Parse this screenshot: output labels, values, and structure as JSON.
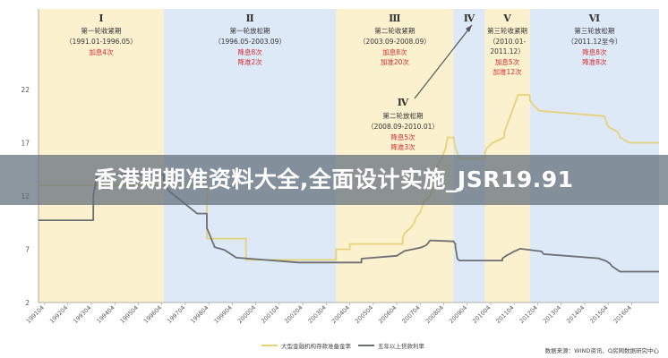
{
  "page_title": "香港期期准资料大全,全面设计实施_JSR19.91",
  "colors": {
    "tighten": "#fbf1cf",
    "ease": "#dde9f6",
    "rrr_line": "#e7d27a",
    "rate_line": "#6b6f73",
    "text": "#333333",
    "red": "#d42a2a"
  },
  "chart_data": {
    "type": "line",
    "ylim": [
      2,
      22
    ],
    "yticks": [
      2,
      7,
      12,
      17,
      22
    ],
    "xlim": [
      "1991-01",
      "2017-06"
    ],
    "grid": false,
    "legend_position": "bottom",
    "x_tick_labels": [
      "199104",
      "199204",
      "199304",
      "199404",
      "199504",
      "199604",
      "199704",
      "199804",
      "199904",
      "200004",
      "200104",
      "200204",
      "200304",
      "200404",
      "200504",
      "200604",
      "200704",
      "200804",
      "200904",
      "201004",
      "201104",
      "201204",
      "201304",
      "201404",
      "201504",
      "201604"
    ],
    "periods": [
      {
        "id": "I",
        "kind": "tighten",
        "start": "1991-01",
        "end": "1996-05",
        "title": "第一轮收紧期",
        "range": "（1991.01-1996.05）",
        "ops": [
          "加息4次"
        ]
      },
      {
        "id": "II",
        "kind": "ease",
        "start": "1996-05",
        "end": "2003-09",
        "title": "第一轮放松期",
        "range": "（1996.05-2003.09）",
        "ops": [
          "降息8次",
          "降准2次"
        ]
      },
      {
        "id": "III",
        "kind": "tighten",
        "start": "2003-09",
        "end": "2008-09",
        "title": "第二轮收紧期",
        "range": "（2003.09-2008.09）",
        "ops": [
          "加息8次",
          "加准20次"
        ]
      },
      {
        "id": "IV",
        "kind": "ease",
        "start": "2008-09",
        "end": "2010-01",
        "title": "第二轮放松期",
        "range": "（2008.09-2010.01）",
        "ops": [
          "降息5次",
          "降准3次"
        ]
      },
      {
        "id": "V",
        "kind": "tighten",
        "start": "2010-01",
        "end": "2011-12",
        "title": "第三轮收紧期",
        "range": "（2010.01-2011.12）",
        "ops": [
          "加息5次",
          "加准12次"
        ]
      },
      {
        "id": "VI",
        "kind": "ease",
        "start": "2011-12",
        "end": "2017-06",
        "title": "第三轮放松期",
        "range": "（2011.12至今）",
        "ops": [
          "降息8次",
          "降准8次"
        ]
      }
    ],
    "series": [
      {
        "name": "大型金融机构存款准备金率",
        "color": "#e7d27a",
        "points": [
          [
            "1991-01",
            13
          ],
          [
            "1998-03",
            13
          ],
          [
            "1998-03",
            8
          ],
          [
            "1999-11",
            8
          ],
          [
            "1999-11",
            6
          ],
          [
            "2003-09",
            6
          ],
          [
            "2003-09",
            7
          ],
          [
            "2004-04",
            7
          ],
          [
            "2004-04",
            7.5
          ],
          [
            "2006-07",
            7.5
          ],
          [
            "2006-07",
            8
          ],
          [
            "2006-08",
            8.5
          ],
          [
            "2006-11",
            9
          ],
          [
            "2007-01",
            9.5
          ],
          [
            "2007-02",
            10
          ],
          [
            "2007-04",
            10.5
          ],
          [
            "2007-05",
            11
          ],
          [
            "2007-06",
            11.5
          ],
          [
            "2007-09",
            12
          ],
          [
            "2007-10",
            12.5
          ],
          [
            "2007-12",
            14.5
          ],
          [
            "2008-01",
            15
          ],
          [
            "2008-03",
            15.5
          ],
          [
            "2008-04",
            16
          ],
          [
            "2008-05",
            16.5
          ],
          [
            "2008-06",
            17.5
          ],
          [
            "2008-09",
            17.5
          ],
          [
            "2008-10",
            16.5
          ],
          [
            "2008-12",
            15.5
          ],
          [
            "2010-01",
            15.5
          ],
          [
            "2010-01",
            16
          ],
          [
            "2010-02",
            16.5
          ],
          [
            "2010-05",
            17
          ],
          [
            "2010-11",
            17.5
          ],
          [
            "2010-11",
            18
          ],
          [
            "2010-12",
            18.5
          ],
          [
            "2011-01",
            19
          ],
          [
            "2011-02",
            19.5
          ],
          [
            "2011-03",
            20
          ],
          [
            "2011-04",
            20.5
          ],
          [
            "2011-05",
            21
          ],
          [
            "2011-06",
            21.5
          ],
          [
            "2011-12",
            21.5
          ],
          [
            "2011-12",
            21
          ],
          [
            "2012-02",
            20.5
          ],
          [
            "2012-05",
            20
          ],
          [
            "2015-02",
            19.5
          ],
          [
            "2015-04",
            18.5
          ],
          [
            "2015-09",
            18
          ],
          [
            "2015-10",
            17.5
          ],
          [
            "2016-03",
            17
          ],
          [
            "2017-06",
            17
          ]
        ]
      },
      {
        "name": "五年以上贷款利率",
        "color": "#6b6f73",
        "points": [
          [
            "1991-01",
            9.72
          ],
          [
            "1991-04",
            9.72
          ],
          [
            "1993-05",
            9.72
          ],
          [
            "1993-05",
            12.06
          ],
          [
            "1993-07",
            14.04
          ],
          [
            "1996-05",
            14.04
          ],
          [
            "1996-05",
            13.14
          ],
          [
            "1996-08",
            12.42
          ],
          [
            "1997-10",
            10.35
          ],
          [
            "1998-03",
            10.35
          ],
          [
            "1998-03",
            9.0
          ],
          [
            "1998-07",
            7.2
          ],
          [
            "1998-12",
            6.93
          ],
          [
            "1999-06",
            6.21
          ],
          [
            "2002-02",
            5.76
          ],
          [
            "2004-10",
            5.76
          ],
          [
            "2004-10",
            6.12
          ],
          [
            "2006-04",
            6.39
          ],
          [
            "2006-08",
            6.84
          ],
          [
            "2007-03",
            7.11
          ],
          [
            "2007-05",
            7.2
          ],
          [
            "2007-07",
            7.38
          ],
          [
            "2007-08",
            7.56
          ],
          [
            "2007-09",
            7.83
          ],
          [
            "2008-09",
            7.74
          ],
          [
            "2008-10",
            7.47
          ],
          [
            "2008-10",
            7.2
          ],
          [
            "2008-11",
            6.12
          ],
          [
            "2008-12",
            5.94
          ],
          [
            "2010-10",
            5.94
          ],
          [
            "2010-10",
            6.14
          ],
          [
            "2010-12",
            6.4
          ],
          [
            "2011-02",
            6.6
          ],
          [
            "2011-04",
            6.8
          ],
          [
            "2011-07",
            7.05
          ],
          [
            "2012-06",
            6.8
          ],
          [
            "2012-07",
            6.55
          ],
          [
            "2014-11",
            6.15
          ],
          [
            "2015-03",
            5.9
          ],
          [
            "2015-05",
            5.65
          ],
          [
            "2015-06",
            5.4
          ],
          [
            "2015-08",
            5.15
          ],
          [
            "2015-10",
            4.9
          ],
          [
            "2017-06",
            4.9
          ]
        ]
      }
    ],
    "annotation_arrow": {
      "from_period": "IV",
      "to_period": "IV"
    },
    "source_note": "数据来源：WIND资讯、Q房网数据研究中心"
  }
}
